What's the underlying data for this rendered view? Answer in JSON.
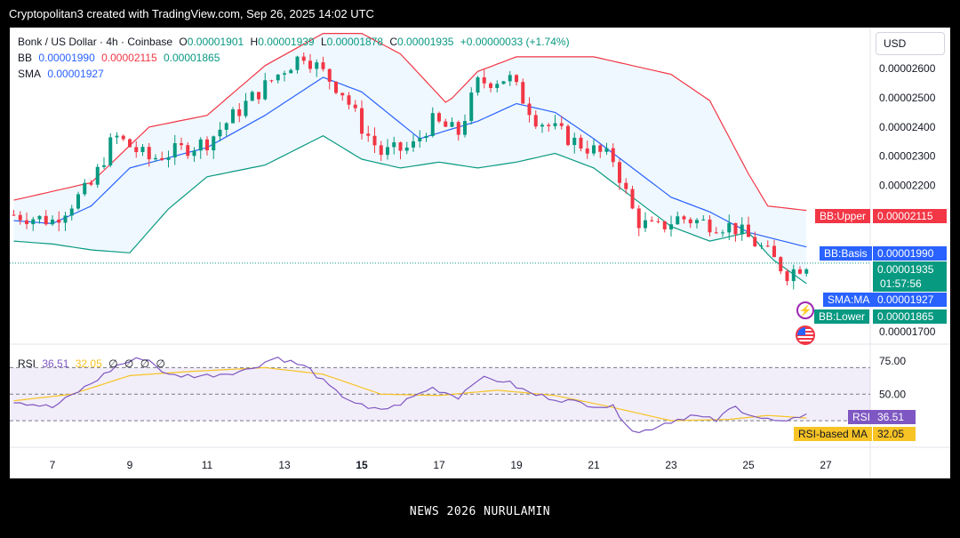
{
  "header": {
    "text": "Cryptopolitan3 created with TradingView.com, Sep 26, 2025 14:02 UTC"
  },
  "legend": {
    "symbol": "Bonk / US Dollar · 4h · Coinbase",
    "o_label": "O",
    "o": "0.00001901",
    "h_label": "H",
    "h": "0.00001939",
    "l_label": "L",
    "l": "0.00001878",
    "c_label": "C",
    "c": "0.00001935",
    "change": "+0.00000033 (+1.74%)",
    "bb_label": "BB",
    "bb_basis": "0.00001990",
    "bb_upper": "0.00002115",
    "bb_lower": "0.00001865",
    "sma_label": "SMA",
    "sma": "0.00001927",
    "rsi_label": "RSI",
    "rsi": "36.51",
    "rsi_ma": "32.05",
    "rsi_extra": [
      "∅",
      "∅",
      "∅",
      "∅"
    ]
  },
  "currency": "USD",
  "tags": {
    "bb_upper": {
      "label": "BB:Upper",
      "value": "0.00002115"
    },
    "bb_basis": {
      "label": "BB:Basis",
      "value": "0.00001990"
    },
    "price": {
      "value": "0.00001935",
      "countdown": "01:57:56"
    },
    "sma": {
      "label": "SMA:MA",
      "value": "0.00001927"
    },
    "bb_lower": {
      "label": "BB:Lower",
      "value": "0.00001865"
    },
    "rsi": {
      "label": "RSI",
      "value": "36.51"
    },
    "rsi_ma": {
      "label": "RSI-based MA",
      "value": "32.05"
    }
  },
  "colors": {
    "up": "#089981",
    "down": "#f23645",
    "bb_upper": "#f23645",
    "bb_basis": "#2962ff",
    "bb_lower": "#089981",
    "sma": "#2962ff",
    "rsi": "#7e57c2",
    "rsi_ma": "#f7c325"
  },
  "footer": {
    "text": "NEWS 2026 NURULAMIN"
  },
  "chart_data": [
    {
      "type": "candlestick",
      "title": "Bonk / US Dollar · 4h · Coinbase",
      "y_ticks": [
        "0.00002600",
        "0.00002500",
        "0.00002400",
        "0.00002300",
        "0.00002200",
        "0.00001700"
      ],
      "y_tick_values": [
        2.6e-05,
        2.5e-05,
        2.4e-05,
        2.3e-05,
        2.2e-05,
        1.7e-05
      ],
      "ylim": [
        1.67e-05,
        2.74e-05
      ],
      "x_ticks": [
        "7",
        "9",
        "11",
        "13",
        "15",
        "17",
        "19",
        "21",
        "23",
        "25",
        "27"
      ],
      "x_tick_days": [
        7,
        9,
        11,
        13,
        15,
        17,
        19,
        21,
        23,
        25,
        27
      ],
      "close_key_points": [
        {
          "day": 6.0,
          "value": 2.1e-05
        },
        {
          "day": 7.0,
          "value": 2.08e-05
        },
        {
          "day": 8.0,
          "value": 2.2e-05
        },
        {
          "day": 8.6,
          "value": 2.37e-05
        },
        {
          "day": 9.5,
          "value": 2.29e-05
        },
        {
          "day": 11.0,
          "value": 2.35e-05
        },
        {
          "day": 12.0,
          "value": 2.48e-05
        },
        {
          "day": 13.0,
          "value": 2.6e-05
        },
        {
          "day": 13.5,
          "value": 2.65e-05
        },
        {
          "day": 14.5,
          "value": 2.52e-05
        },
        {
          "day": 15.0,
          "value": 2.4e-05
        },
        {
          "day": 15.5,
          "value": 2.31e-05
        },
        {
          "day": 16.3,
          "value": 2.33e-05
        },
        {
          "day": 16.8,
          "value": 2.42e-05
        },
        {
          "day": 17.5,
          "value": 2.38e-05
        },
        {
          "day": 18.0,
          "value": 2.55e-05
        },
        {
          "day": 18.8,
          "value": 2.57e-05
        },
        {
          "day": 19.5,
          "value": 2.43e-05
        },
        {
          "day": 20.5,
          "value": 2.35e-05
        },
        {
          "day": 21.5,
          "value": 2.29e-05
        },
        {
          "day": 22.1,
          "value": 2.08e-05
        },
        {
          "day": 22.6,
          "value": 2.05e-05
        },
        {
          "day": 23.2,
          "value": 2.09e-05
        },
        {
          "day": 24.0,
          "value": 2.07e-05
        },
        {
          "day": 24.6,
          "value": 2.06e-05
        },
        {
          "day": 25.4,
          "value": 1.98e-05
        },
        {
          "day": 26.0,
          "value": 1.9e-05
        },
        {
          "day": 26.5,
          "value": 1.935e-05
        }
      ],
      "bb_upper_key_points": [
        {
          "day": 6.0,
          "value": 2.15e-05
        },
        {
          "day": 8.0,
          "value": 2.21e-05
        },
        {
          "day": 9.5,
          "value": 2.4e-05
        },
        {
          "day": 11.0,
          "value": 2.44e-05
        },
        {
          "day": 12.5,
          "value": 2.61e-05
        },
        {
          "day": 14.0,
          "value": 2.72e-05
        },
        {
          "day": 15.0,
          "value": 2.72e-05
        },
        {
          "day": 16.0,
          "value": 2.65e-05
        },
        {
          "day": 17.2,
          "value": 2.48e-05
        },
        {
          "day": 18.0,
          "value": 2.59e-05
        },
        {
          "day": 19.0,
          "value": 2.64e-05
        },
        {
          "day": 21.0,
          "value": 2.64e-05
        },
        {
          "day": 23.0,
          "value": 2.58e-05
        },
        {
          "day": 24.0,
          "value": 2.49e-05
        },
        {
          "day": 25.0,
          "value": 2.24e-05
        },
        {
          "day": 25.5,
          "value": 2.13e-05
        },
        {
          "day": 26.5,
          "value": 2.115e-05
        }
      ],
      "bb_basis_key_points": [
        {
          "day": 6.0,
          "value": 2.08e-05
        },
        {
          "day": 7.0,
          "value": 2.07e-05
        },
        {
          "day": 8.0,
          "value": 2.13e-05
        },
        {
          "day": 9.0,
          "value": 2.26e-05
        },
        {
          "day": 11.0,
          "value": 2.33e-05
        },
        {
          "day": 12.5,
          "value": 2.44e-05
        },
        {
          "day": 14.0,
          "value": 2.57e-05
        },
        {
          "day": 15.0,
          "value": 2.52e-05
        },
        {
          "day": 16.5,
          "value": 2.36e-05
        },
        {
          "day": 18.0,
          "value": 2.42e-05
        },
        {
          "day": 19.0,
          "value": 2.48e-05
        },
        {
          "day": 20.0,
          "value": 2.45e-05
        },
        {
          "day": 21.0,
          "value": 2.36e-05
        },
        {
          "day": 22.0,
          "value": 2.26e-05
        },
        {
          "day": 23.0,
          "value": 2.16e-05
        },
        {
          "day": 24.0,
          "value": 2.11e-05
        },
        {
          "day": 25.0,
          "value": 2.04e-05
        },
        {
          "day": 26.5,
          "value": 1.99e-05
        }
      ],
      "bb_lower_key_points": [
        {
          "day": 6.0,
          "value": 2.01e-05
        },
        {
          "day": 7.0,
          "value": 2e-05
        },
        {
          "day": 8.0,
          "value": 1.98e-05
        },
        {
          "day": 9.0,
          "value": 1.97e-05
        },
        {
          "day": 10.0,
          "value": 2.12e-05
        },
        {
          "day": 11.0,
          "value": 2.23e-05
        },
        {
          "day": 12.5,
          "value": 2.27e-05
        },
        {
          "day": 14.0,
          "value": 2.37e-05
        },
        {
          "day": 15.0,
          "value": 2.29e-05
        },
        {
          "day": 16.0,
          "value": 2.26e-05
        },
        {
          "day": 17.0,
          "value": 2.28e-05
        },
        {
          "day": 18.0,
          "value": 2.26e-05
        },
        {
          "day": 19.0,
          "value": 2.28e-05
        },
        {
          "day": 20.0,
          "value": 2.31e-05
        },
        {
          "day": 21.0,
          "value": 2.26e-05
        },
        {
          "day": 22.0,
          "value": 2.16e-05
        },
        {
          "day": 23.0,
          "value": 2.06e-05
        },
        {
          "day": 24.0,
          "value": 2.01e-05
        },
        {
          "day": 25.0,
          "value": 2.04e-05
        },
        {
          "day": 25.6,
          "value": 1.95e-05
        },
        {
          "day": 26.5,
          "value": 1.865e-05
        }
      ]
    },
    {
      "type": "line",
      "title": "RSI",
      "ylim": [
        10,
        85
      ],
      "y_ticks": [
        "75.00",
        "50.00"
      ],
      "y_tick_values": [
        75,
        50
      ],
      "levels": [
        70,
        50,
        30
      ],
      "rsi_key_points": [
        {
          "day": 6.0,
          "value": 45
        },
        {
          "day": 7.0,
          "value": 40
        },
        {
          "day": 8.0,
          "value": 58
        },
        {
          "day": 8.7,
          "value": 72
        },
        {
          "day": 9.4,
          "value": 78
        },
        {
          "day": 10.0,
          "value": 64
        },
        {
          "day": 11.0,
          "value": 64
        },
        {
          "day": 12.0,
          "value": 68
        },
        {
          "day": 12.8,
          "value": 78
        },
        {
          "day": 13.6,
          "value": 70
        },
        {
          "day": 14.3,
          "value": 52
        },
        {
          "day": 15.2,
          "value": 38
        },
        {
          "day": 15.8,
          "value": 40
        },
        {
          "day": 16.8,
          "value": 55
        },
        {
          "day": 17.5,
          "value": 48
        },
        {
          "day": 18.0,
          "value": 62
        },
        {
          "day": 18.7,
          "value": 60
        },
        {
          "day": 19.4,
          "value": 50
        },
        {
          "day": 20.5,
          "value": 44
        },
        {
          "day": 21.5,
          "value": 40
        },
        {
          "day": 22.1,
          "value": 20
        },
        {
          "day": 22.8,
          "value": 28
        },
        {
          "day": 23.5,
          "value": 34
        },
        {
          "day": 24.2,
          "value": 30
        },
        {
          "day": 24.6,
          "value": 41
        },
        {
          "day": 25.3,
          "value": 32
        },
        {
          "day": 26.0,
          "value": 28
        },
        {
          "day": 26.5,
          "value": 36.51
        }
      ],
      "rsi_ma_key_points": [
        {
          "day": 6.0,
          "value": 45
        },
        {
          "day": 7.5,
          "value": 50
        },
        {
          "day": 9.0,
          "value": 64
        },
        {
          "day": 10.5,
          "value": 67
        },
        {
          "day": 12.5,
          "value": 70
        },
        {
          "day": 14.0,
          "value": 65
        },
        {
          "day": 15.5,
          "value": 50
        },
        {
          "day": 17.0,
          "value": 49
        },
        {
          "day": 18.5,
          "value": 53
        },
        {
          "day": 20.0,
          "value": 49
        },
        {
          "day": 21.5,
          "value": 40
        },
        {
          "day": 23.0,
          "value": 30
        },
        {
          "day": 24.5,
          "value": 31
        },
        {
          "day": 25.5,
          "value": 34
        },
        {
          "day": 26.5,
          "value": 32.05
        }
      ]
    }
  ]
}
